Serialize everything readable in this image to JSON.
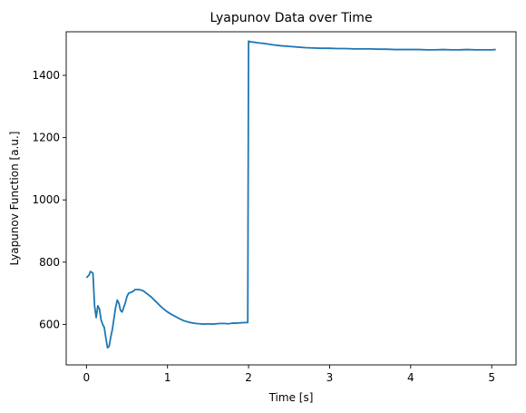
{
  "chart_data": {
    "type": "line",
    "title": "Lyapunov Data over Time",
    "xlabel": "Time [s]",
    "ylabel": "Lyapunov Function [a.u.]",
    "xlim": [
      -0.25,
      5.3
    ],
    "ylim": [
      470,
      1540
    ],
    "xticks": [
      0,
      1,
      2,
      3,
      4,
      5
    ],
    "yticks": [
      600,
      800,
      1000,
      1200,
      1400
    ],
    "grid": false,
    "line_color": "#1f77b4",
    "series": [
      {
        "x": [
          0.0,
          0.03,
          0.05,
          0.08,
          0.1,
          0.12,
          0.14,
          0.16,
          0.18,
          0.2,
          0.22,
          0.24,
          0.26,
          0.28,
          0.3,
          0.32,
          0.34,
          0.36,
          0.38,
          0.4,
          0.42,
          0.44,
          0.46,
          0.48,
          0.5,
          0.52,
          0.55,
          0.58,
          0.6,
          0.65,
          0.7,
          0.75,
          0.8,
          0.85,
          0.9,
          0.95,
          1.0,
          1.05,
          1.1,
          1.15,
          1.2,
          1.25,
          1.3,
          1.35,
          1.4,
          1.45,
          1.5,
          1.55,
          1.6,
          1.65,
          1.7,
          1.75,
          1.8,
          1.85,
          1.9,
          1.95,
          1.98,
          1.99,
          2.0,
          2.02,
          2.05,
          2.1,
          2.2,
          2.3,
          2.4,
          2.5,
          2.6,
          2.7,
          2.8,
          2.9,
          3.0,
          3.1,
          3.2,
          3.3,
          3.4,
          3.5,
          3.6,
          3.7,
          3.8,
          3.9,
          4.0,
          4.1,
          4.2,
          4.3,
          4.4,
          4.5,
          4.6,
          4.7,
          4.8,
          4.9,
          5.0,
          5.05
        ],
        "y": [
          750,
          758,
          770,
          765,
          660,
          622,
          660,
          650,
          615,
          600,
          590,
          555,
          525,
          530,
          560,
          585,
          620,
          655,
          678,
          668,
          645,
          640,
          655,
          670,
          690,
          700,
          703,
          707,
          712,
          712,
          708,
          698,
          688,
          675,
          662,
          650,
          640,
          632,
          625,
          618,
          612,
          608,
          605,
          603,
          602,
          601,
          602,
          601,
          602,
          603,
          603,
          602,
          604,
          604,
          605,
          606,
          606,
          606,
          1510,
          1508,
          1507,
          1505,
          1502,
          1498,
          1495,
          1493,
          1491,
          1489,
          1488,
          1487,
          1487,
          1486,
          1486,
          1485,
          1485,
          1485,
          1484,
          1484,
          1483,
          1483,
          1483,
          1483,
          1482,
          1482,
          1483,
          1482,
          1482,
          1483,
          1482,
          1482,
          1482,
          1483
        ]
      }
    ]
  }
}
